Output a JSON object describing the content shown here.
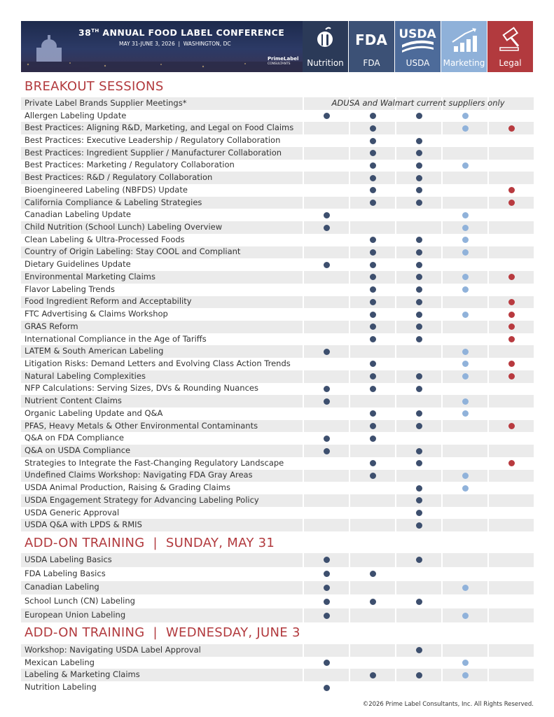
{
  "header": {
    "title_number": "38",
    "title_suffix": "TH",
    "title_rest": "ANNUAL FOOD LABEL CONFERENCE",
    "dates": "MAY 31-JUNE 3, 2026",
    "location": "WASHINGTON, DC",
    "logo_name": "PrimeLabel",
    "logo_sub": "CONSULTANTS",
    "fda_icon": "FDA",
    "usda_icon": "USDA"
  },
  "columns": [
    {
      "label": "Nutrition",
      "color": "#2b3a58",
      "dot_color": "#3d4f6e"
    },
    {
      "label": "FDA",
      "color": "#3c5176",
      "dot_color": "#3d4f6e"
    },
    {
      "label": "USDA",
      "color": "#4d6b9a",
      "dot_color": "#3d4f6e"
    },
    {
      "label": "Marketing",
      "color": "#8fb1d9",
      "dot_color": "#90b2da"
    },
    {
      "label": "Legal",
      "color": "#b23a3e",
      "dot_color": "#b83a3f"
    }
  ],
  "sections": [
    {
      "title": "BREAKOUT SESSIONS",
      "rows": [
        {
          "label": "Private Label Brands Supplier Meetings*",
          "note": "ADUSA and Walmart current suppliers only",
          "marks": [
            false,
            false,
            false,
            false,
            false
          ]
        },
        {
          "label": "Allergen Labeling Update",
          "marks": [
            true,
            true,
            true,
            true,
            false
          ]
        },
        {
          "label": "Best Practices: Aligning R&D, Marketing, and Legal on Food Claims",
          "marks": [
            false,
            true,
            false,
            true,
            true
          ]
        },
        {
          "label": "Best Practices: Executive Leadership / Regulatory Collaboration",
          "marks": [
            false,
            true,
            true,
            false,
            false
          ]
        },
        {
          "label": "Best Practices: Ingredient Supplier / Manufacturer Collaboration",
          "marks": [
            false,
            true,
            true,
            false,
            false
          ]
        },
        {
          "label": "Best Practices: Marketing / Regulatory Collaboration",
          "marks": [
            false,
            true,
            true,
            true,
            false
          ]
        },
        {
          "label": "Best Practices: R&D / Regulatory Collaboration",
          "marks": [
            false,
            true,
            true,
            false,
            false
          ]
        },
        {
          "label": "Bioengineered Labeling (NBFDS) Update",
          "marks": [
            false,
            true,
            true,
            false,
            true
          ]
        },
        {
          "label": "California Compliance & Labeling Strategies",
          "marks": [
            false,
            true,
            true,
            false,
            true
          ]
        },
        {
          "label": "Canadian Labeling Update",
          "marks": [
            true,
            false,
            false,
            true,
            false
          ]
        },
        {
          "label": "Child Nutrition (School Lunch) Labeling Overview",
          "marks": [
            true,
            false,
            false,
            true,
            false
          ]
        },
        {
          "label": "Clean Labeling & Ultra-Processed Foods",
          "marks": [
            false,
            true,
            true,
            true,
            false
          ]
        },
        {
          "label": "Country of Origin Labeling: Stay COOL and Compliant",
          "marks": [
            false,
            true,
            true,
            true,
            false
          ]
        },
        {
          "label": "Dietary Guidelines Update",
          "marks": [
            true,
            true,
            true,
            false,
            false
          ]
        },
        {
          "label": "Environmental Marketing Claims",
          "marks": [
            false,
            true,
            true,
            true,
            true
          ]
        },
        {
          "label": "Flavor Labeling Trends",
          "marks": [
            false,
            true,
            true,
            true,
            false
          ]
        },
        {
          "label": "Food Ingredient Reform and Acceptability",
          "marks": [
            false,
            true,
            true,
            false,
            true
          ]
        },
        {
          "label": "FTC Advertising & Claims Workshop",
          "marks": [
            false,
            true,
            true,
            true,
            true
          ]
        },
        {
          "label": "GRAS Reform",
          "marks": [
            false,
            true,
            true,
            false,
            true
          ]
        },
        {
          "label": "International Compliance in the Age of Tariffs",
          "marks": [
            false,
            true,
            true,
            false,
            true
          ]
        },
        {
          "label": "LATEM & South American Labeling",
          "marks": [
            true,
            false,
            false,
            true,
            false
          ]
        },
        {
          "label": "Litigation Risks: Demand Letters and Evolving Class Action Trends",
          "marks": [
            false,
            true,
            false,
            true,
            true
          ]
        },
        {
          "label": "Natural Labeling Complexities",
          "marks": [
            false,
            true,
            true,
            true,
            true
          ]
        },
        {
          "label": "NFP Calculations: Serving Sizes, DVs & Rounding Nuances",
          "marks": [
            true,
            true,
            true,
            false,
            false
          ]
        },
        {
          "label": "Nutrient Content Claims",
          "marks": [
            true,
            false,
            false,
            true,
            false
          ]
        },
        {
          "label": "Organic Labeling Update and Q&A",
          "marks": [
            false,
            true,
            true,
            true,
            false
          ]
        },
        {
          "label": "PFAS, Heavy Metals & Other Environmental Contaminants",
          "marks": [
            false,
            true,
            true,
            false,
            true
          ]
        },
        {
          "label": "Q&A on FDA Compliance",
          "marks": [
            true,
            true,
            false,
            false,
            false
          ]
        },
        {
          "label": "Q&A on USDA Compliance",
          "marks": [
            true,
            false,
            true,
            false,
            false
          ]
        },
        {
          "label": "Strategies to Integrate the Fast-Changing Regulatory Landscape",
          "marks": [
            false,
            true,
            true,
            false,
            true
          ]
        },
        {
          "label": "Undefined Claims Workshop: Navigating FDA Gray Areas",
          "marks": [
            false,
            true,
            false,
            true,
            false
          ]
        },
        {
          "label": "USDA Animal Production, Raising & Grading Claims",
          "marks": [
            false,
            false,
            true,
            true,
            false
          ]
        },
        {
          "label": "USDA Engagement Strategy for Advancing Labeling Policy",
          "marks": [
            false,
            false,
            true,
            false,
            false
          ]
        },
        {
          "label": "USDA Generic Approval",
          "marks": [
            false,
            false,
            true,
            false,
            false
          ]
        },
        {
          "label": "USDA Q&A with LPDS & RMIS",
          "marks": [
            false,
            false,
            true,
            false,
            false
          ]
        }
      ]
    },
    {
      "title": "ADD-ON TRAINING  |  SUNDAY, MAY 31",
      "rows": [
        {
          "label": "USDA Labeling Basics",
          "marks": [
            true,
            false,
            true,
            false,
            false
          ]
        },
        {
          "label": "FDA Labeling Basics",
          "marks": [
            true,
            true,
            false,
            false,
            false
          ]
        },
        {
          "label": "Canadian Labeling",
          "marks": [
            true,
            false,
            false,
            true,
            false
          ]
        },
        {
          "label": "School Lunch (CN) Labeling",
          "marks": [
            true,
            true,
            true,
            false,
            false
          ]
        },
        {
          "label": "European Union Labeling",
          "marks": [
            true,
            false,
            false,
            true,
            false
          ]
        }
      ]
    },
    {
      "title": "ADD-ON TRAINING  |  WEDNESDAY, JUNE 3",
      "rows": [
        {
          "label": "Workshop: Navigating USDA Label Approval",
          "marks": [
            false,
            false,
            true,
            false,
            false
          ]
        },
        {
          "label": "Mexican Labeling",
          "marks": [
            true,
            false,
            false,
            true,
            false
          ]
        },
        {
          "label": "Labeling & Marketing Claims",
          "marks": [
            false,
            true,
            true,
            true,
            false
          ]
        },
        {
          "label": "Nutrition Labeling",
          "marks": [
            true,
            false,
            false,
            false,
            false
          ]
        }
      ]
    }
  ],
  "footer": "©2026 Prime Label Consultants, Inc. All Rights Reserved."
}
